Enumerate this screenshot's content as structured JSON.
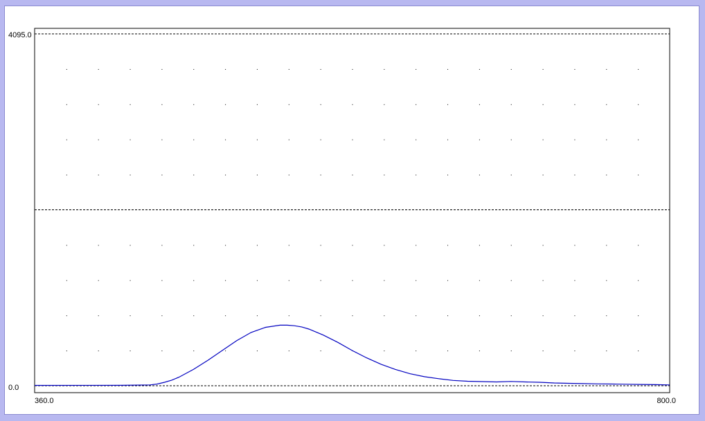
{
  "chart_data": {
    "type": "line",
    "xlim": [
      360.0,
      800.0
    ],
    "ylim": [
      0.0,
      4095.0
    ],
    "x_tick_labels": [
      "360.0",
      "800.0"
    ],
    "y_tick_labels": [
      "4095.0",
      "0.0"
    ],
    "grid": "dotted",
    "midline_y": 2047.5,
    "line_color": "#0000c0",
    "series": [
      {
        "x": [
          360,
          420,
          440,
          445,
          450,
          455,
          460,
          470,
          480,
          490,
          500,
          510,
          520,
          530,
          535,
          540,
          545,
          550,
          560,
          570,
          580,
          590,
          600,
          610,
          620,
          630,
          640,
          650,
          660,
          670,
          680,
          690,
          700,
          710,
          720,
          730,
          740,
          750,
          760,
          770,
          780,
          790,
          800
        ],
        "values": [
          4,
          5,
          10,
          20,
          40,
          65,
          100,
          190,
          295,
          410,
          525,
          620,
          680,
          705,
          705,
          698,
          685,
          660,
          590,
          505,
          410,
          325,
          250,
          190,
          140,
          105,
          82,
          62,
          52,
          48,
          44,
          50,
          44,
          40,
          32,
          28,
          25,
          22,
          20,
          18,
          15,
          13,
          10
        ]
      }
    ]
  }
}
